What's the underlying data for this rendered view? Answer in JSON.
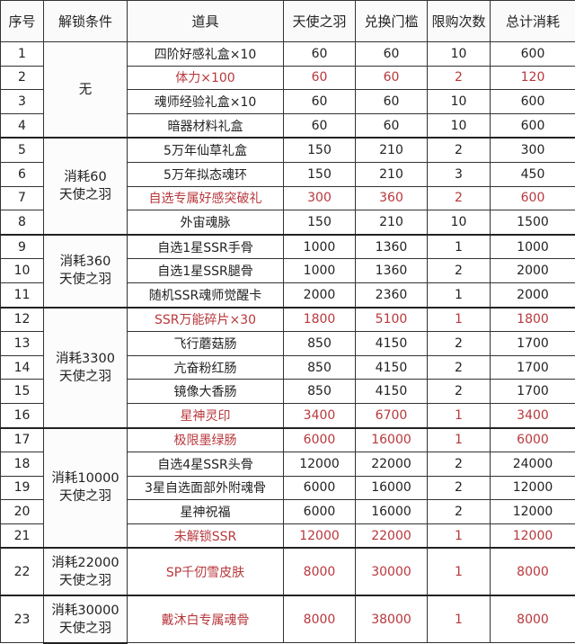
{
  "headers": [
    "序号",
    "解锁条件",
    "道具",
    "天使之羽",
    "兑换门槛",
    "限购次数",
    "总计消耗"
  ],
  "colors": {
    "highlight_text": "#b8383c",
    "normal_text": "#222222",
    "border": "#333333"
  },
  "groups": [
    {
      "condition": [
        "无"
      ],
      "rows": [
        {
          "no": "1",
          "item": "四阶好感礼盒×10",
          "feather": "60",
          "threshold": "60",
          "limit": "10",
          "total": "600",
          "highlight": false
        },
        {
          "no": "2",
          "item": "体力×100",
          "feather": "60",
          "threshold": "60",
          "limit": "2",
          "total": "120",
          "highlight": true
        },
        {
          "no": "3",
          "item": "魂师经验礼盒×10",
          "feather": "60",
          "threshold": "60",
          "limit": "10",
          "total": "600",
          "highlight": false
        },
        {
          "no": "4",
          "item": "暗器材料礼盒",
          "feather": "60",
          "threshold": "60",
          "limit": "10",
          "total": "600",
          "highlight": false
        }
      ]
    },
    {
      "condition": [
        "消耗60",
        "天使之羽"
      ],
      "rows": [
        {
          "no": "5",
          "item": "5万年仙草礼盒",
          "feather": "150",
          "threshold": "210",
          "limit": "2",
          "total": "300",
          "highlight": false
        },
        {
          "no": "6",
          "item": "5万年拟态魂环",
          "feather": "150",
          "threshold": "210",
          "limit": "3",
          "total": "450",
          "highlight": false
        },
        {
          "no": "7",
          "item": "自选专属好感突破礼",
          "feather": "300",
          "threshold": "360",
          "limit": "2",
          "total": "600",
          "highlight": true
        },
        {
          "no": "8",
          "item": "外宙魂脉",
          "feather": "150",
          "threshold": "210",
          "limit": "10",
          "total": "1500",
          "highlight": false
        }
      ]
    },
    {
      "condition": [
        "消耗360",
        "天使之羽"
      ],
      "rows": [
        {
          "no": "9",
          "item": "自选1星SSR手骨",
          "feather": "1000",
          "threshold": "1360",
          "limit": "1",
          "total": "1000",
          "highlight": false
        },
        {
          "no": "10",
          "item": "自选1星SSR腿骨",
          "feather": "1000",
          "threshold": "1360",
          "limit": "2",
          "total": "2000",
          "highlight": false
        },
        {
          "no": "11",
          "item": "随机SSR魂师觉醒卡",
          "feather": "2000",
          "threshold": "2360",
          "limit": "1",
          "total": "2000",
          "highlight": false
        }
      ]
    },
    {
      "condition": [
        "消耗3300",
        "天使之羽"
      ],
      "rows": [
        {
          "no": "12",
          "item": "SSR万能碎片×30",
          "feather": "1800",
          "threshold": "5100",
          "limit": "1",
          "total": "1800",
          "highlight": true
        },
        {
          "no": "13",
          "item": "飞行蘑菇肠",
          "feather": "850",
          "threshold": "4150",
          "limit": "2",
          "total": "1700",
          "highlight": false
        },
        {
          "no": "14",
          "item": "亢奋粉红肠",
          "feather": "850",
          "threshold": "4150",
          "limit": "2",
          "total": "1700",
          "highlight": false
        },
        {
          "no": "15",
          "item": "镜像大香肠",
          "feather": "850",
          "threshold": "4150",
          "limit": "2",
          "total": "1700",
          "highlight": false
        },
        {
          "no": "16",
          "item": "星神灵印",
          "feather": "3400",
          "threshold": "6700",
          "limit": "1",
          "total": "3400",
          "highlight": true
        }
      ]
    },
    {
      "condition": [
        "消耗10000",
        "天使之羽"
      ],
      "rows": [
        {
          "no": "17",
          "item": "极限墨绿肠",
          "feather": "6000",
          "threshold": "16000",
          "limit": "1",
          "total": "6000",
          "highlight": true
        },
        {
          "no": "18",
          "item": "自选4星SSR头骨",
          "feather": "12000",
          "threshold": "22000",
          "limit": "2",
          "total": "24000",
          "highlight": false
        },
        {
          "no": "19",
          "item": "3星自选面部外附魂骨",
          "feather": "6000",
          "threshold": "16000",
          "limit": "2",
          "total": "12000",
          "highlight": false
        },
        {
          "no": "20",
          "item": "星神祝福",
          "feather": "6000",
          "threshold": "16000",
          "limit": "2",
          "total": "12000",
          "highlight": false
        },
        {
          "no": "21",
          "item": "未解锁SSR",
          "feather": "12000",
          "threshold": "22000",
          "limit": "1",
          "total": "12000",
          "highlight": true
        }
      ]
    },
    {
      "condition": [
        "消耗22000",
        "天使之羽"
      ],
      "tall": true,
      "rows": [
        {
          "no": "22",
          "item": "SP千仞雪皮肤",
          "feather": "8000",
          "threshold": "30000",
          "limit": "1",
          "total": "8000",
          "highlight": true
        }
      ]
    },
    {
      "condition": [
        "消耗30000",
        "天使之羽"
      ],
      "tall": true,
      "rows": [
        {
          "no": "23",
          "item": "戴沐白专属魂骨",
          "feather": "8000",
          "threshold": "38000",
          "limit": "1",
          "total": "8000",
          "highlight": true
        }
      ]
    }
  ]
}
